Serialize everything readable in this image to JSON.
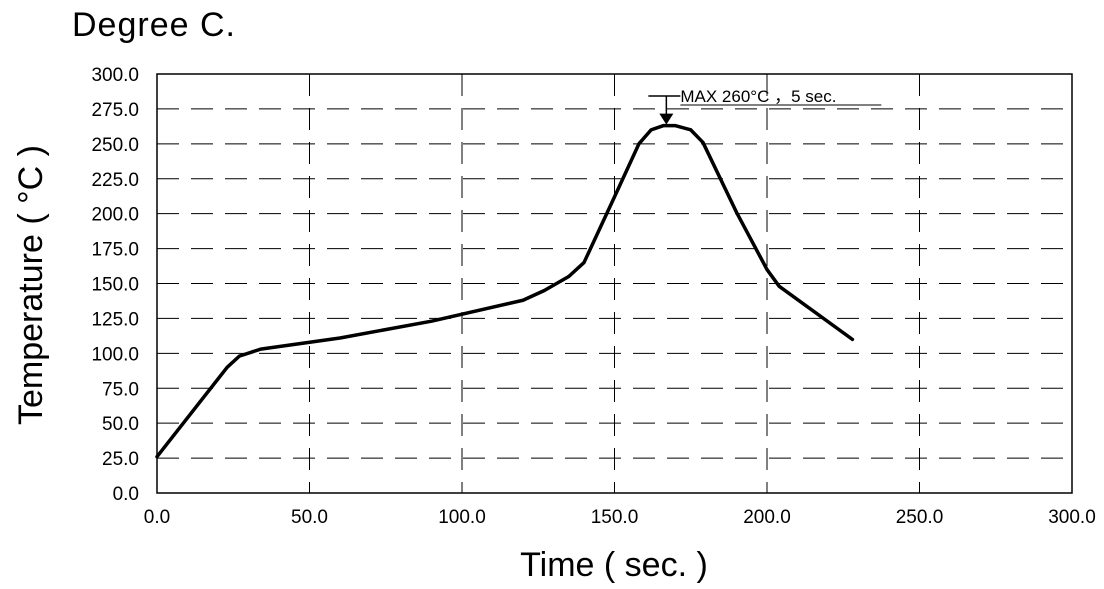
{
  "chart_data": {
    "type": "line",
    "title": "Degree C.",
    "xlabel": "Time ( sec. )",
    "ylabel": "Temperature ( °C )",
    "xlim": [
      0,
      300
    ],
    "ylim": [
      0,
      300
    ],
    "x_ticks": [
      "0.0",
      "50.0",
      "100.0",
      "150.0",
      "200.0",
      "250.0",
      "300.0"
    ],
    "y_ticks": [
      "0.0",
      "25.0",
      "50.0",
      "75.0",
      "100.0",
      "125.0",
      "150.0",
      "175.0",
      "200.0",
      "225.0",
      "250.0",
      "275.0",
      "300.0"
    ],
    "grid": true,
    "series": [
      {
        "x": [
          0,
          23,
          27,
          34,
          60,
          90,
          120,
          127,
          135,
          140,
          150,
          158,
          162,
          166,
          170,
          175,
          179,
          190,
          200,
          204,
          228
        ],
        "y": [
          26,
          90,
          98,
          103,
          111,
          123,
          138,
          145,
          155,
          165,
          212,
          250,
          260,
          263,
          263,
          260,
          251,
          201,
          160,
          148,
          110
        ]
      }
    ],
    "annotation": {
      "text": "MAX 260°C ，5 sec.",
      "x": 167,
      "y": 263
    }
  }
}
